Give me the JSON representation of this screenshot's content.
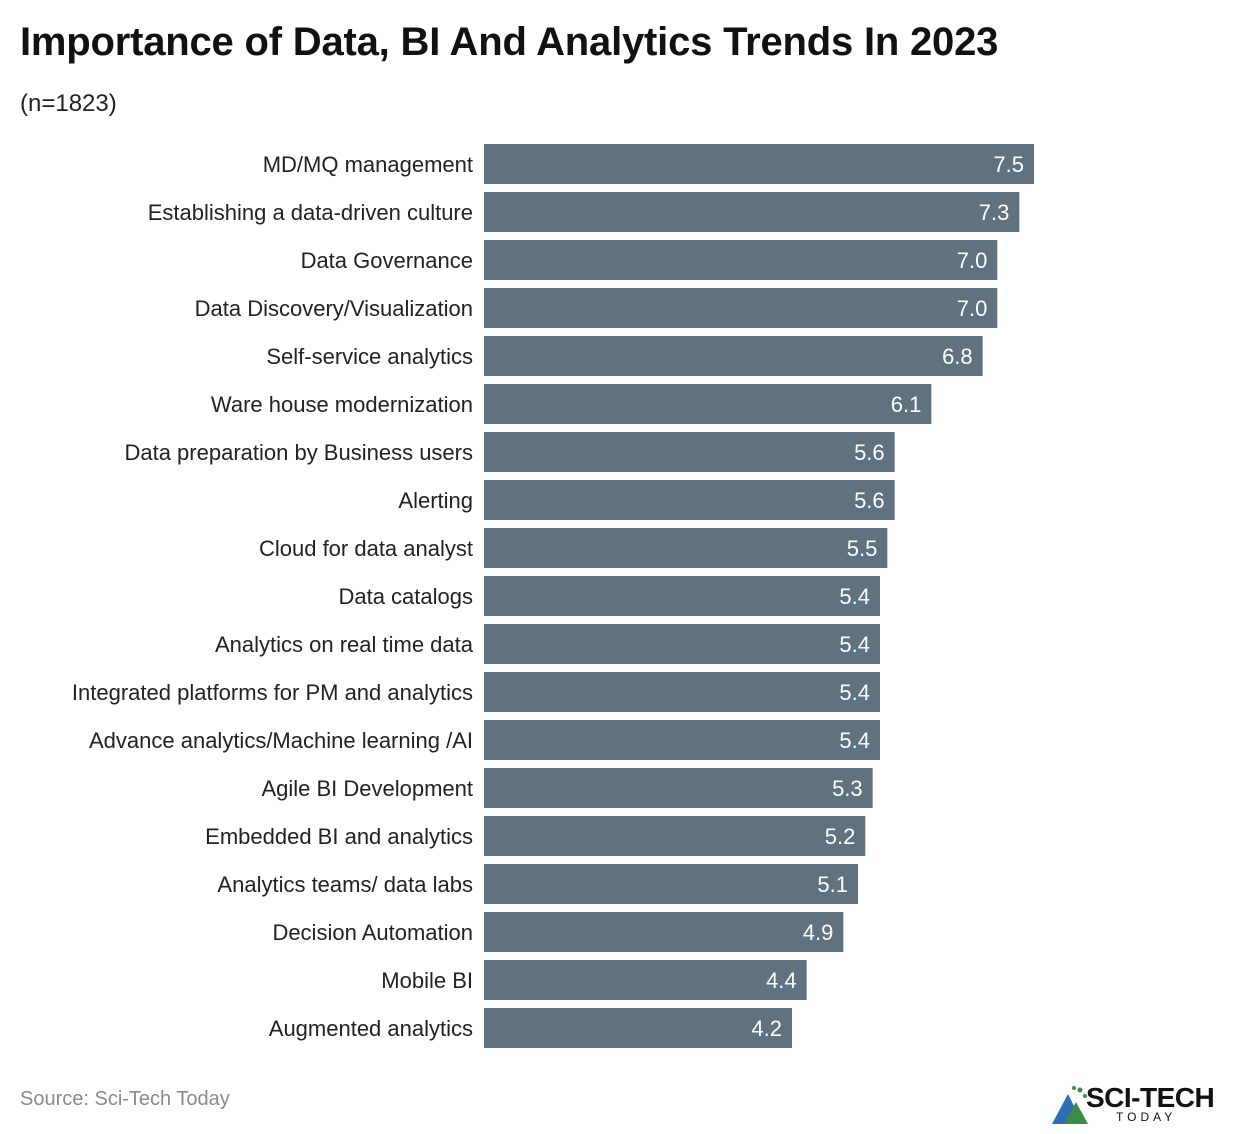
{
  "header": {
    "title": "Importance of Data, BI And Analytics Trends In 2023",
    "subtitle": "(n=1823)"
  },
  "footer": {
    "source": "Source: Sci-Tech Today",
    "logo_text": "SCI-TECH",
    "logo_sub": "TODAY"
  },
  "colors": {
    "bar": "#60727f",
    "bar_label": "#ffffff",
    "category_label": "#222222"
  },
  "chart_data": {
    "type": "bar",
    "orientation": "horizontal",
    "title": "Importance of Data, BI And Analytics Trends In 2023",
    "subtitle": "(n=1823)",
    "xlabel": "",
    "ylabel": "",
    "xlim": [
      0,
      7.5
    ],
    "grid": false,
    "categories": [
      "MD/MQ management",
      "Establishing a data-driven culture",
      "Data Governance",
      "Data Discovery/Visualization",
      "Self-service analytics",
      "Ware house modernization",
      "Data preparation by Business users",
      "Alerting",
      "Cloud for data analyst",
      "Data catalogs",
      "Analytics on real time data",
      "Integrated platforms for PM and analytics",
      "Advance analytics/Machine learning /AI",
      "Agile BI Development",
      "Embedded BI and analytics",
      "Analytics teams/ data labs",
      "Decision Automation",
      "Mobile BI",
      "Augmented analytics"
    ],
    "values": [
      7.5,
      7.3,
      7.0,
      7.0,
      6.8,
      6.1,
      5.6,
      5.6,
      5.5,
      5.4,
      5.4,
      5.4,
      5.4,
      5.3,
      5.2,
      5.1,
      4.9,
      4.4,
      4.2
    ],
    "value_labels": [
      "7.5",
      "7.3",
      "7.0",
      "7.0",
      "6.8",
      "6.1",
      "5.6",
      "5.6",
      "5.5",
      "5.4",
      "5.4",
      "5.4",
      "5.4",
      "5.3",
      "5.2",
      "5.1",
      "4.9",
      "4.4",
      "4.2"
    ]
  }
}
